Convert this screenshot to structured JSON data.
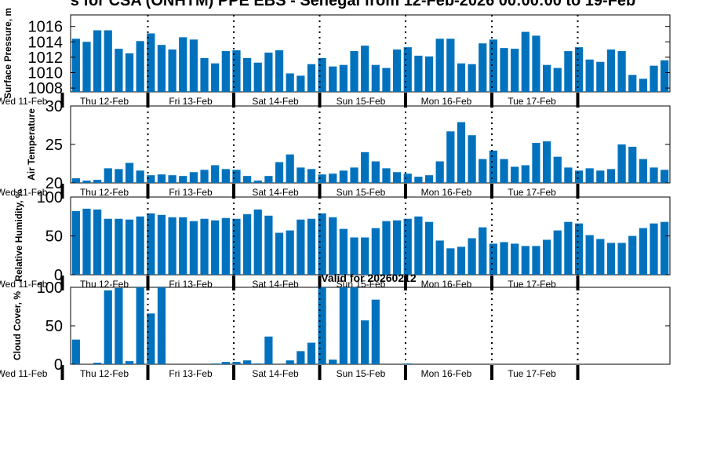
{
  "title": "s for CSA (ONHTM) PPE EBS  - Senegal from 12-Feb-2026 00:00:00 to 19-Feb",
  "valid_label": "Valid for 20260212",
  "colors": {
    "bar": "#0072bd",
    "axis": "#000000",
    "divider": "#000000"
  },
  "day_labels": [
    "Wed 11-Feb",
    "Thu 12-Feb",
    "Fri 13-Feb",
    "Sat 14-Feb",
    "Sun 15-Feb",
    "Mon 16-Feb",
    "Tue 17-Feb"
  ],
  "chart_data": [
    {
      "type": "bar",
      "ylabel": "Surface Pressure, m",
      "ylim": [
        1007.5,
        1017.5
      ],
      "yticks": [
        1008,
        1010,
        1012,
        1014,
        1016
      ],
      "grid": false,
      "values": [
        1014.4,
        1014.0,
        1015.5,
        1015.5,
        1013.1,
        1012.5,
        1014.1,
        1015.1,
        1013.6,
        1013.0,
        1014.6,
        1014.3,
        1011.9,
        1011.2,
        1012.8,
        1012.9,
        1011.9,
        1011.3,
        1012.6,
        1012.9,
        1009.9,
        1009.6,
        1011.1,
        1011.9,
        1010.8,
        1011.0,
        1012.8,
        1013.5,
        1011.0,
        1010.6,
        1013.0,
        1013.3,
        1012.2,
        1012.1,
        1014.4,
        1014.4,
        1011.2,
        1011.1,
        1013.8,
        1014.3,
        1013.2,
        1013.1,
        1015.3,
        1014.8,
        1011.0,
        1010.6,
        1012.8,
        1013.3,
        1011.7,
        1011.4,
        1013.0,
        1012.8,
        1009.7,
        1009.2,
        1010.9,
        1011.6
      ]
    },
    {
      "type": "bar",
      "ylabel": "Air Temperature",
      "ylim": [
        20,
        30
      ],
      "yticks": [
        20,
        25,
        30
      ],
      "grid": false,
      "values": [
        20.6,
        20.3,
        20.4,
        21.9,
        21.8,
        22.6,
        21.6,
        21.0,
        21.1,
        21.0,
        20.9,
        21.4,
        21.7,
        22.3,
        21.8,
        21.7,
        20.9,
        20.3,
        20.9,
        22.7,
        23.7,
        22.0,
        21.8,
        21.1,
        21.2,
        21.6,
        22.0,
        24.0,
        22.8,
        21.9,
        21.4,
        21.2,
        20.8,
        21.0,
        22.8,
        26.7,
        27.9,
        26.2,
        23.1,
        24.2,
        23.1,
        22.1,
        22.3,
        25.2,
        25.4,
        23.4,
        22.0,
        21.6,
        21.9,
        21.6,
        21.8,
        25.0,
        24.7,
        23.1,
        22.0,
        21.7
      ]
    },
    {
      "type": "bar",
      "ylabel": "Relative Humidity, %",
      "ylim": [
        0,
        100
      ],
      "yticks": [
        0,
        50,
        100
      ],
      "grid": false,
      "values": [
        82,
        85,
        84,
        72,
        72,
        71,
        75,
        79,
        77,
        74,
        74,
        69,
        72,
        70,
        73,
        72,
        78,
        84,
        76,
        54,
        57,
        71,
        72,
        79,
        74,
        59,
        48,
        48,
        60,
        69,
        70,
        72,
        75,
        68,
        44,
        34,
        36,
        47,
        61,
        40,
        42,
        40,
        37,
        37,
        45,
        57,
        68,
        66,
        51,
        46,
        41,
        41,
        50,
        60,
        66,
        68
      ]
    },
    {
      "type": "bar",
      "ylabel": "Cloud Cover, %",
      "ylim": [
        0,
        100
      ],
      "yticks": [
        0,
        50,
        100
      ],
      "grid": false,
      "values": [
        32,
        0,
        2,
        96,
        99,
        4,
        100,
        66,
        100,
        0,
        0,
        0,
        0,
        1,
        3,
        3,
        5,
        1,
        36,
        0,
        5,
        17,
        28,
        100,
        6,
        100,
        100,
        57,
        84,
        0,
        0,
        1,
        0,
        0,
        0,
        0,
        0,
        0,
        0,
        0,
        0,
        0,
        0,
        0,
        0,
        0,
        0,
        0,
        0,
        0,
        0,
        0,
        0,
        0,
        0,
        0
      ]
    }
  ]
}
